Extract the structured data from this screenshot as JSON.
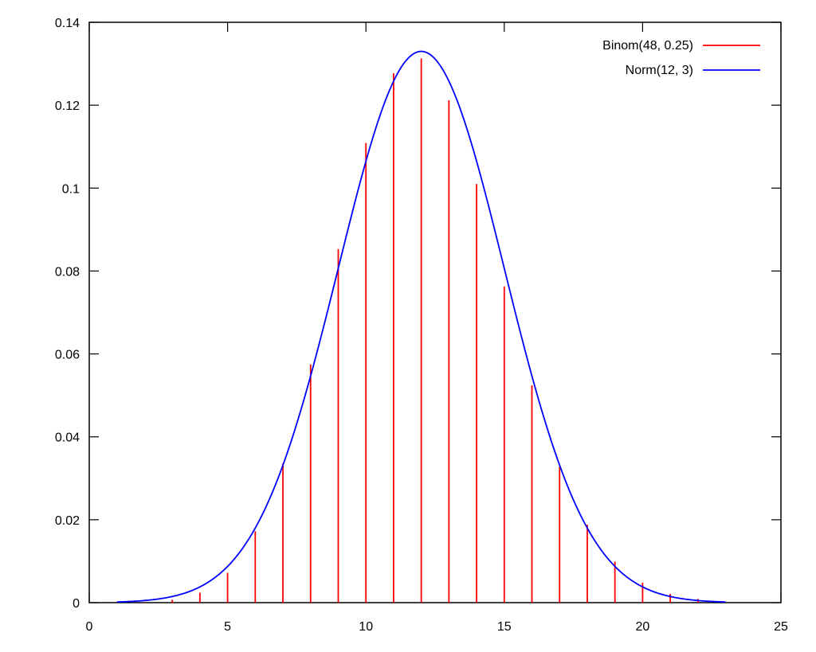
{
  "chart_data": {
    "type": "bar",
    "title": "",
    "xlabel": "",
    "ylabel": "",
    "xlim": [
      0,
      25
    ],
    "ylim": [
      0,
      0.14
    ],
    "x_ticks": [
      "0",
      "5",
      "10",
      "15",
      "20",
      "25"
    ],
    "y_ticks": [
      "0",
      "0.02",
      "0.04",
      "0.06",
      "0.08",
      "0.1",
      "0.12",
      "0.14"
    ],
    "legend_position": "top-right",
    "grid": false,
    "series": [
      {
        "name": "Binom(48, 0.25)",
        "type": "impulses",
        "color": "#ff0000",
        "x": [
          2,
          3,
          4,
          5,
          6,
          7,
          8,
          9,
          10,
          11,
          12,
          13,
          14,
          15,
          16,
          17,
          18,
          19,
          20,
          21,
          22
        ],
        "values": [
          0.0001,
          0.0007,
          0.0024,
          0.0072,
          0.0172,
          0.0336,
          0.0575,
          0.0853,
          0.1109,
          0.1277,
          0.1313,
          0.1212,
          0.101,
          0.0763,
          0.0524,
          0.0328,
          0.0188,
          0.0099,
          0.0048,
          0.0021,
          0.0009
        ]
      },
      {
        "name": "Norm(12, 3)",
        "type": "line",
        "color": "#0000ff",
        "function": "normal_pdf",
        "mean": 12,
        "sd": 3,
        "domain": [
          1,
          23
        ]
      }
    ]
  }
}
